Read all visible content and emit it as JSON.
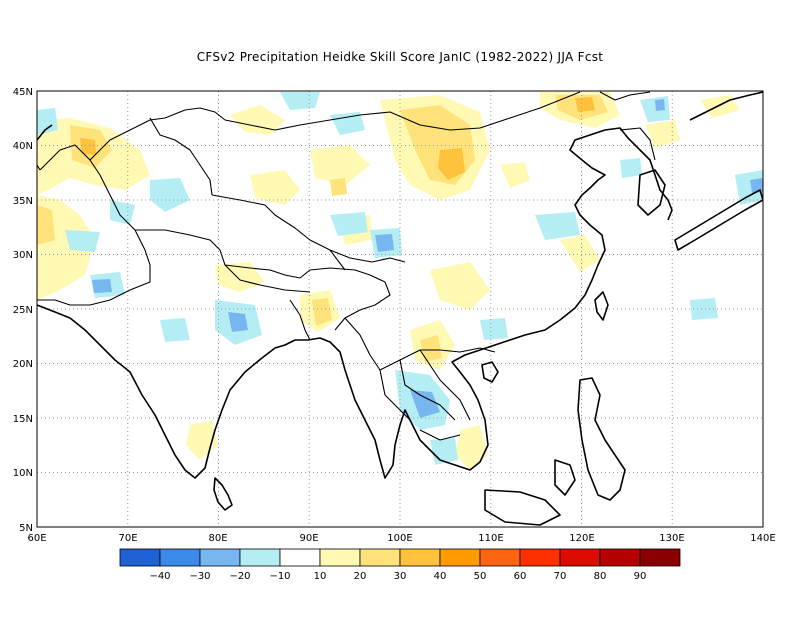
{
  "title": "CFSv2  Precipitation Heidke Skill Score JanIC (1982-2022) JJA Fcst",
  "map": {
    "lon_range": [
      60,
      140
    ],
    "lat_range": [
      5,
      45
    ],
    "x_ticks": [
      "60E",
      "70E",
      "80E",
      "90E",
      "100E",
      "110E",
      "120E",
      "130E",
      "140E"
    ],
    "y_ticks": [
      "45N",
      "40N",
      "35N",
      "30N",
      "25N",
      "20N",
      "15N",
      "10N",
      "5N"
    ]
  },
  "colorbar": {
    "colors": [
      "#1f62d6",
      "#3b8ae8",
      "#78b6f0",
      "#b4eef4",
      "#ffffff",
      "#fff9b4",
      "#ffe27a",
      "#ffc23c",
      "#ff9b00",
      "#ff6410",
      "#ff3000",
      "#dd0c00",
      "#b40000",
      "#8a0000"
    ],
    "labels": [
      "-40",
      "-30",
      "-20",
      "-10",
      "10",
      "20",
      "30",
      "40",
      "50",
      "60",
      "70",
      "80",
      "90"
    ]
  }
}
